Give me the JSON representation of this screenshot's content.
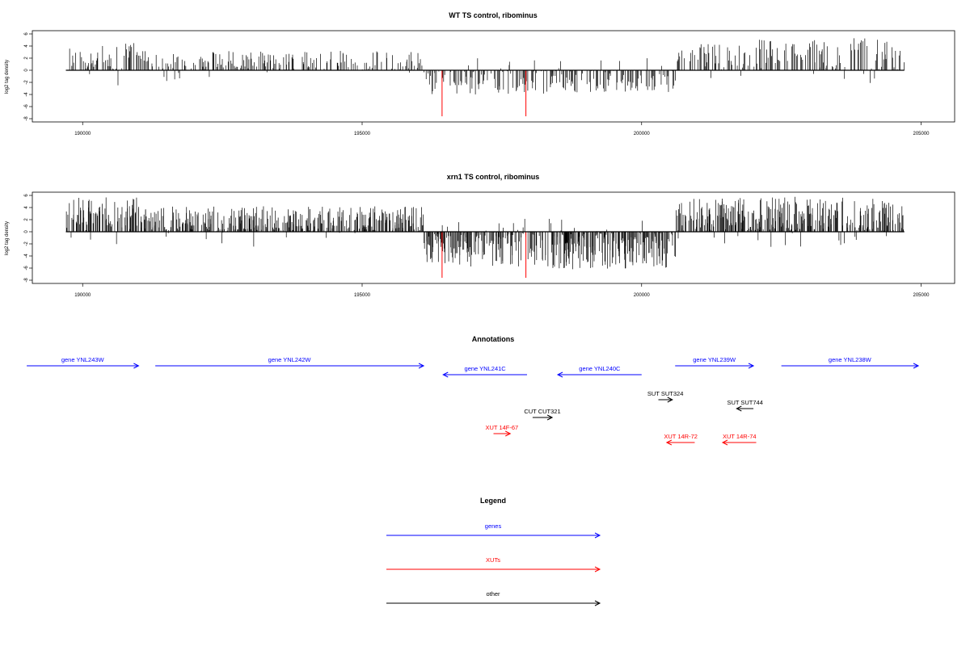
{
  "colors": {
    "gene": "#0000ff",
    "xut": "#ff0000",
    "other": "#000000",
    "peak": "#ff0000"
  },
  "chart_data": [
    {
      "type": "bar",
      "title": "WT TS control, ribominus",
      "ylabel": "log2 tag density",
      "xlim": [
        189100,
        205600
      ],
      "ylim": [
        -8,
        6
      ],
      "yticks": [
        6,
        4,
        2,
        0,
        -2,
        -4,
        -6,
        -8
      ],
      "xticks": [
        190000,
        195000,
        200000,
        205000
      ],
      "track_start": 189700,
      "track_end": 204700,
      "seed": 11,
      "density": 1,
      "segments": [
        {
          "from": 189700,
          "to": 191000,
          "mode": "pos",
          "max": 4.5
        },
        {
          "from": 191000,
          "to": 196100,
          "mode": "pos",
          "max": 3.2
        },
        {
          "from": 196100,
          "to": 198400,
          "mode": "neg",
          "max": 4.0
        },
        {
          "from": 198400,
          "to": 200600,
          "mode": "neg",
          "max": 3.8
        },
        {
          "from": 200600,
          "to": 202100,
          "mode": "pos",
          "max": 4.3
        },
        {
          "from": 202100,
          "to": 204700,
          "mode": "pos",
          "max": 5.3
        }
      ],
      "peaks": [
        {
          "x": 196430,
          "y": -7.6
        },
        {
          "x": 197930,
          "y": -7.6
        }
      ]
    },
    {
      "type": "bar",
      "title": "xrn1 TS control, ribominus",
      "ylabel": "log2 tag density",
      "xlim": [
        189100,
        205600
      ],
      "ylim": [
        -8,
        6
      ],
      "yticks": [
        6,
        4,
        2,
        0,
        -2,
        -4,
        -6,
        -8
      ],
      "xticks": [
        190000,
        195000,
        200000,
        205000
      ],
      "track_start": 189700,
      "track_end": 204700,
      "seed": 29,
      "density": 2,
      "segments": [
        {
          "from": 189700,
          "to": 191000,
          "mode": "pos",
          "max": 5.8
        },
        {
          "from": 191000,
          "to": 196100,
          "mode": "pos",
          "max": 4.2
        },
        {
          "from": 196100,
          "to": 198400,
          "mode": "neg",
          "max": 5.8
        },
        {
          "from": 198400,
          "to": 200600,
          "mode": "neg",
          "max": 6.2
        },
        {
          "from": 200600,
          "to": 202100,
          "mode": "pos",
          "max": 5.7
        },
        {
          "from": 202100,
          "to": 204700,
          "mode": "pos",
          "max": 5.8
        }
      ],
      "peaks": [
        {
          "x": 196430,
          "y": -7.6
        },
        {
          "x": 197930,
          "y": -7.6
        }
      ]
    }
  ],
  "annotations": {
    "title": "Annotations",
    "items": [
      {
        "label": "gene YNL243W",
        "start": 189000,
        "end": 191000,
        "strand": "+",
        "type": "gene",
        "row": 0
      },
      {
        "label": "gene YNL242W",
        "start": 191300,
        "end": 196100,
        "strand": "+",
        "type": "gene",
        "row": 0
      },
      {
        "label": "gene YNL241C",
        "start": 196450,
        "end": 197950,
        "strand": "-",
        "type": "gene",
        "row": 1
      },
      {
        "label": "gene YNL240C",
        "start": 198500,
        "end": 200000,
        "strand": "-",
        "type": "gene",
        "row": 1
      },
      {
        "label": "gene YNL239W",
        "start": 200600,
        "end": 202000,
        "strand": "+",
        "type": "gene",
        "row": 0
      },
      {
        "label": "gene YNL238W",
        "start": 202500,
        "end": 204950,
        "strand": "+",
        "type": "gene",
        "row": 0
      },
      {
        "label": "SUT SUT324",
        "start": 200300,
        "end": 200550,
        "strand": "+",
        "type": "other",
        "row": 2
      },
      {
        "label": "SUT SUT744",
        "start": 201700,
        "end": 202000,
        "strand": "-",
        "type": "other",
        "row": 3
      },
      {
        "label": "CUT CUT321",
        "start": 198050,
        "end": 198400,
        "strand": "+",
        "type": "other",
        "row": 4
      },
      {
        "label": "XUT 14F-67",
        "start": 197350,
        "end": 197650,
        "strand": "+",
        "type": "xut",
        "row": 5
      },
      {
        "label": "XUT 14R-72",
        "start": 200450,
        "end": 200950,
        "strand": "-",
        "type": "xut",
        "row": 6
      },
      {
        "label": "XUT 14R-74",
        "start": 201450,
        "end": 202050,
        "strand": "-",
        "type": "xut",
        "row": 6
      }
    ]
  },
  "legend": {
    "title": "Legend",
    "items": [
      {
        "label": "genes",
        "type": "gene"
      },
      {
        "label": "XUTs",
        "type": "xut"
      },
      {
        "label": "other",
        "type": "other"
      }
    ]
  }
}
